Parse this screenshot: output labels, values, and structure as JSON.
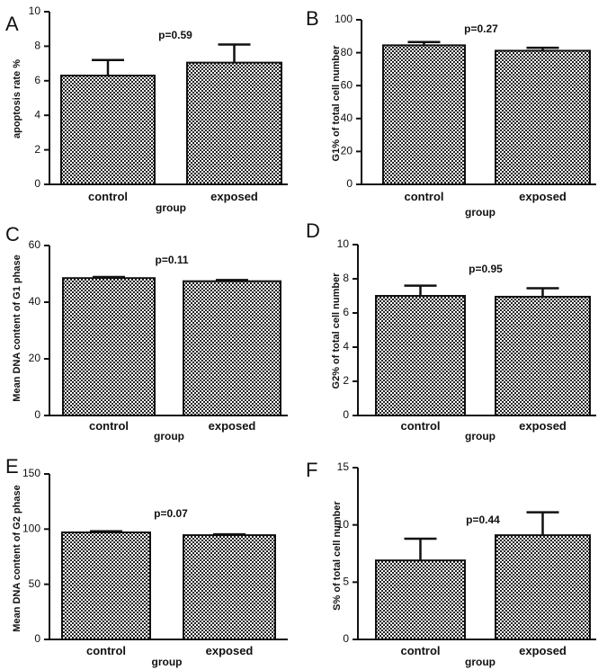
{
  "chart_data": [
    {
      "panel": "A",
      "type": "bar",
      "categories": [
        "control",
        "exposed"
      ],
      "values": [
        6.3,
        7.05
      ],
      "errors": [
        0.9,
        1.05
      ],
      "xlabel": "group",
      "ylabel": "apoptosis rate %",
      "ylim": [
        0,
        10
      ],
      "yticks": [
        0,
        2,
        4,
        6,
        8,
        10
      ],
      "annotation": "p=0.59",
      "pattern_color": "#222222"
    },
    {
      "panel": "B",
      "type": "bar",
      "categories": [
        "control",
        "exposed"
      ],
      "values": [
        84.5,
        81.2
      ],
      "errors": [
        2.0,
        1.8
      ],
      "xlabel": "group",
      "ylabel": "G1% of total cell number",
      "ylim": [
        0,
        100
      ],
      "yticks": [
        0,
        20,
        40,
        60,
        80,
        100
      ],
      "annotation": "p=0.27",
      "pattern_color": "#222222"
    },
    {
      "panel": "C",
      "type": "bar",
      "categories": [
        "control",
        "exposed"
      ],
      "values": [
        48.5,
        47.4
      ],
      "errors": [
        0.4,
        0.4
      ],
      "xlabel": "group",
      "ylabel": "Mean DNA content of G1 phase",
      "ylim": [
        0,
        60
      ],
      "yticks": [
        0,
        20,
        40,
        60
      ],
      "annotation": "p=0.11",
      "pattern_color": "#222222"
    },
    {
      "panel": "D",
      "type": "bar",
      "categories": [
        "control",
        "exposed"
      ],
      "values": [
        7.0,
        6.95
      ],
      "errors": [
        0.6,
        0.5
      ],
      "xlabel": "group",
      "ylabel": "G2% of total cell number",
      "ylim": [
        0,
        10
      ],
      "yticks": [
        0,
        2,
        4,
        6,
        8,
        10
      ],
      "annotation": "p=0.95",
      "pattern_color": "#222222"
    },
    {
      "panel": "E",
      "type": "bar",
      "categories": [
        "control",
        "exposed"
      ],
      "values": [
        97.0,
        94.5
      ],
      "errors": [
        1.0,
        0.8
      ],
      "xlabel": "group",
      "ylabel": "Mean DNA content of G2 phase",
      "ylim": [
        0,
        150
      ],
      "yticks": [
        0,
        50,
        100,
        150
      ],
      "annotation": "p=0.07",
      "pattern_color": "#222222"
    },
    {
      "panel": "F",
      "type": "bar",
      "categories": [
        "control",
        "exposed"
      ],
      "values": [
        6.9,
        9.1
      ],
      "errors": [
        1.9,
        2.0
      ],
      "xlabel": "group",
      "ylabel": "S% of total cell number",
      "ylim": [
        0,
        15
      ],
      "yticks": [
        0,
        5,
        10,
        15
      ],
      "annotation": "p=0.44",
      "pattern_color": "#222222"
    }
  ]
}
